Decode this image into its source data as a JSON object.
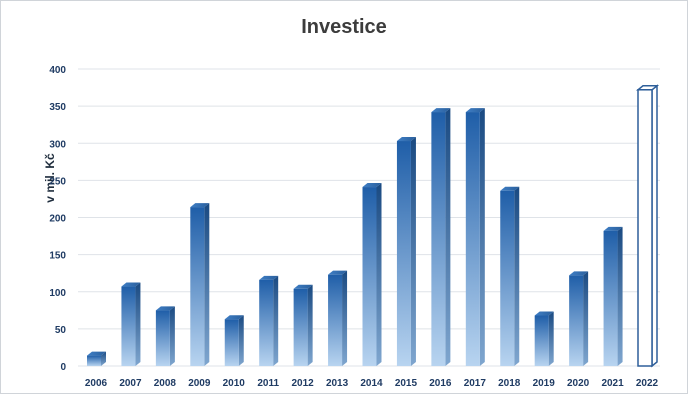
{
  "chart_data": {
    "type": "bar",
    "title": "Investice",
    "xlabel": "",
    "ylabel": "v mil. Kč",
    "ylim": [
      0,
      400
    ],
    "yticks": [
      0,
      50,
      100,
      150,
      200,
      250,
      300,
      350,
      400
    ],
    "grid": true,
    "categories": [
      "2006",
      "2007",
      "2008",
      "2009",
      "2010",
      "2011",
      "2012",
      "2013",
      "2014",
      "2015",
      "2016",
      "2017",
      "2018",
      "2019",
      "2020",
      "2021",
      "2022"
    ],
    "values": [
      14,
      107,
      75,
      214,
      63,
      116,
      104,
      123,
      241,
      303,
      342,
      342,
      236,
      68,
      122,
      182,
      372
    ],
    "styles": [
      "filled",
      "filled",
      "filled",
      "filled",
      "filled",
      "filled",
      "filled",
      "filled",
      "filled",
      "filled",
      "filled",
      "filled",
      "filled",
      "filled",
      "filled",
      "filled",
      "outline"
    ],
    "colors": {
      "bar_top": "#1f5ea8",
      "bar_bottom": "#b8d4f0",
      "side": "#2a5a92",
      "outline_stroke": "#2e5f9a",
      "grid": "#dfe3e8",
      "tick": "#1f3b63"
    }
  }
}
